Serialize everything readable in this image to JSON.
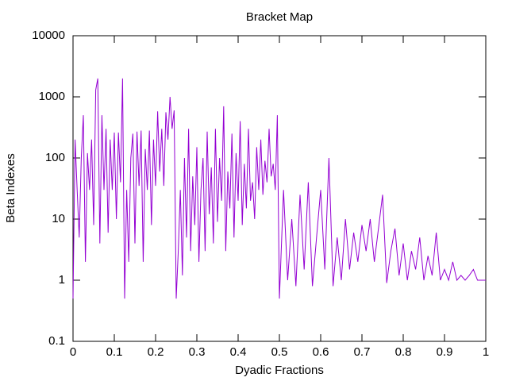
{
  "chart_data": {
    "type": "line",
    "title": "Bracket Map",
    "xlabel": "Dyadic Fractions",
    "ylabel": "Beta Indexes",
    "log_y": true,
    "xlim": [
      0,
      1
    ],
    "ylim": [
      0.1,
      10000
    ],
    "xticks": [
      0,
      0.1,
      0.2,
      0.3,
      0.4,
      0.5,
      0.6,
      0.7,
      0.8,
      0.9,
      1
    ],
    "yticks": [
      0.1,
      1,
      10,
      100,
      1000,
      10000
    ],
    "series": [
      {
        "color": "#9400d3",
        "x": [
          0,
          0.005,
          0.01,
          0.015,
          0.02,
          0.025,
          0.03,
          0.035,
          0.04,
          0.045,
          0.05,
          0.055,
          0.06,
          0.065,
          0.07,
          0.075,
          0.08,
          0.085,
          0.09,
          0.095,
          0.1,
          0.105,
          0.11,
          0.115,
          0.12,
          0.125,
          0.13,
          0.135,
          0.14,
          0.145,
          0.15,
          0.155,
          0.16,
          0.165,
          0.17,
          0.175,
          0.18,
          0.185,
          0.19,
          0.195,
          0.2,
          0.205,
          0.21,
          0.215,
          0.22,
          0.225,
          0.23,
          0.235,
          0.24,
          0.245,
          0.25,
          0.255,
          0.26,
          0.265,
          0.27,
          0.275,
          0.28,
          0.285,
          0.29,
          0.295,
          0.3,
          0.305,
          0.31,
          0.315,
          0.32,
          0.325,
          0.33,
          0.335,
          0.34,
          0.345,
          0.35,
          0.355,
          0.36,
          0.365,
          0.37,
          0.375,
          0.38,
          0.385,
          0.39,
          0.395,
          0.4,
          0.405,
          0.41,
          0.415,
          0.42,
          0.425,
          0.43,
          0.435,
          0.44,
          0.445,
          0.45,
          0.455,
          0.46,
          0.465,
          0.47,
          0.475,
          0.48,
          0.485,
          0.49,
          0.495,
          0.5,
          0.51,
          0.52,
          0.53,
          0.54,
          0.55,
          0.56,
          0.57,
          0.58,
          0.59,
          0.6,
          0.61,
          0.62,
          0.63,
          0.64,
          0.65,
          0.66,
          0.67,
          0.68,
          0.69,
          0.7,
          0.71,
          0.72,
          0.73,
          0.74,
          0.75,
          0.76,
          0.77,
          0.78,
          0.79,
          0.8,
          0.81,
          0.82,
          0.83,
          0.84,
          0.85,
          0.86,
          0.87,
          0.88,
          0.89,
          0.9,
          0.91,
          0.92,
          0.93,
          0.94,
          0.95,
          0.96,
          0.97,
          0.98,
          0.99,
          1
        ],
        "values": [
          0.5,
          200,
          30,
          5,
          100,
          500,
          2,
          120,
          30,
          200,
          8,
          1300,
          2000,
          4,
          500,
          30,
          300,
          6,
          200,
          30,
          260,
          10,
          260,
          40,
          2000,
          0.5,
          30,
          2,
          100,
          250,
          4,
          270,
          35,
          280,
          2,
          140,
          30,
          280,
          8,
          200,
          35,
          580,
          60,
          300,
          35,
          560,
          200,
          1000,
          300,
          600,
          0.5,
          3,
          30,
          1.2,
          100,
          5,
          300,
          3,
          50,
          8,
          150,
          2,
          30,
          100,
          3,
          270,
          12,
          70,
          4,
          300,
          9,
          100,
          20,
          700,
          3,
          60,
          15,
          250,
          5,
          120,
          20,
          400,
          8,
          80,
          15,
          300,
          20,
          40,
          10,
          150,
          30,
          200,
          25,
          90,
          40,
          300,
          50,
          80,
          30,
          500,
          0.5,
          30,
          1,
          10,
          0.8,
          25,
          1.5,
          40,
          0.8,
          5,
          30,
          1.5,
          100,
          0.8,
          5,
          1,
          10,
          1.5,
          6,
          2,
          8,
          3,
          10,
          2,
          7,
          25,
          0.9,
          3,
          7,
          1.2,
          4,
          1,
          3,
          1.5,
          5,
          1,
          2.5,
          1.2,
          6,
          1,
          1.5,
          1,
          2,
          1,
          1.2,
          1,
          1.2,
          1.5,
          1,
          1,
          1
        ]
      }
    ]
  }
}
